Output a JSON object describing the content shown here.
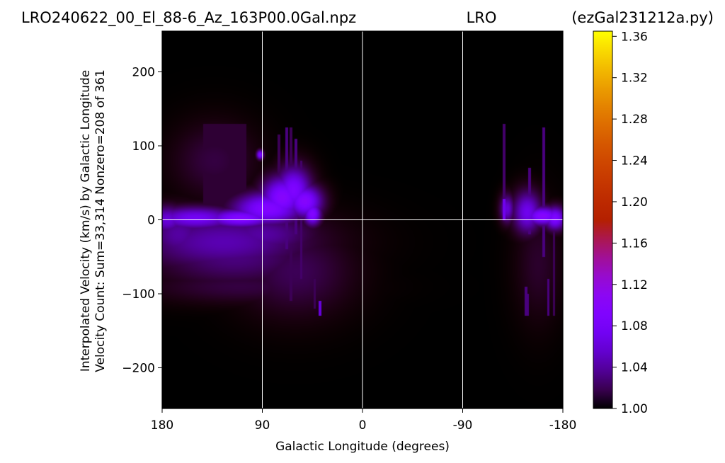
{
  "header": {
    "left": "LRO240622_00_El_88-6_Az_163P00.0Gal.npz",
    "center": "LRO",
    "right": "(ezGal231212a.py)"
  },
  "chart_data": {
    "type": "heatmap",
    "xlabel": "Galactic Longitude (degrees)",
    "ylabel_line1": "Interpolated Velocity (km/s) by Galactic Longitude",
    "ylabel_line2": "Velocity Count: Sum=33,314 Nonzero=208 of 361",
    "xlim": [
      180,
      -180
    ],
    "ylim": [
      -255,
      255
    ],
    "x_ticks": [
      {
        "value": 180,
        "label": "180"
      },
      {
        "value": 90,
        "label": "90"
      },
      {
        "value": 0,
        "label": "0"
      },
      {
        "value": -90,
        "label": "-90"
      },
      {
        "value": -180,
        "label": "-180"
      }
    ],
    "y_ticks": [
      {
        "value": 200,
        "label": "200"
      },
      {
        "value": 100,
        "label": "100"
      },
      {
        "value": 0,
        "label": "0"
      },
      {
        "value": -100,
        "label": "−100"
      },
      {
        "value": -200,
        "label": "−200"
      }
    ],
    "reference_lines": {
      "vertical_x": [
        90,
        0,
        -90
      ],
      "horizontal_y": [
        0
      ],
      "color": "#ffffff"
    },
    "colormap": "gnuplot",
    "background_value": 1.0,
    "colorbar": {
      "range": [
        1.0,
        1.365
      ],
      "ticks": [
        "1.00",
        "1.04",
        "1.08",
        "1.12",
        "1.16",
        "1.20",
        "1.24",
        "1.28",
        "1.32",
        "1.36"
      ],
      "tick_values": [
        1.0,
        1.04,
        1.08,
        1.12,
        1.16,
        1.2,
        1.24,
        1.28,
        1.32,
        1.36
      ]
    },
    "emission_blobs": [
      {
        "l": 125,
        "v": -30,
        "sl": 50,
        "sv": 25,
        "value": 1.045
      },
      {
        "l": 115,
        "v": -50,
        "sl": 45,
        "sv": 25,
        "value": 1.03
      },
      {
        "l": 90,
        "v": -20,
        "sl": 30,
        "sv": 18,
        "value": 1.04
      },
      {
        "l": 165,
        "v": -20,
        "sl": 18,
        "sv": 22,
        "value": 1.04
      },
      {
        "l": 175,
        "v": 0,
        "sl": 10,
        "sv": 12,
        "value": 1.06
      },
      {
        "l": 150,
        "v": 2,
        "sl": 25,
        "sv": 10,
        "value": 1.075
      },
      {
        "l": 110,
        "v": 2,
        "sl": 20,
        "sv": 8,
        "value": 1.095
      },
      {
        "l": 85,
        "v": 15,
        "sl": 20,
        "sv": 14,
        "value": 1.095
      },
      {
        "l": 72,
        "v": 30,
        "sl": 12,
        "sv": 18,
        "value": 1.1
      },
      {
        "l": 62,
        "v": 40,
        "sl": 10,
        "sv": 20,
        "value": 1.09
      },
      {
        "l": 52,
        "v": 25,
        "sl": 10,
        "sv": 14,
        "value": 1.1
      },
      {
        "l": 45,
        "v": 8,
        "sl": 5,
        "sv": 10,
        "value": 1.095
      },
      {
        "l": 110,
        "v": -90,
        "sl": 50,
        "sv": 14,
        "value": 1.015
      },
      {
        "l": 60,
        "v": -70,
        "sl": 30,
        "sv": 35,
        "value": 1.02
      },
      {
        "l": 133,
        "v": 80,
        "sl": 22,
        "sv": 30,
        "value": 1.015
      },
      {
        "l": 92,
        "v": 88,
        "sl": 2,
        "sv": 4,
        "value": 1.09
      },
      {
        "l": -162,
        "v": 5,
        "sl": 10,
        "sv": 8,
        "value": 1.1
      },
      {
        "l": -173,
        "v": 2,
        "sl": 6,
        "sv": 10,
        "value": 1.09
      },
      {
        "l": -148,
        "v": 10,
        "sl": 8,
        "sv": 18,
        "value": 1.07
      },
      {
        "l": -130,
        "v": 15,
        "sl": 4,
        "sv": 12,
        "value": 1.06
      },
      {
        "l": -158,
        "v": -60,
        "sl": 12,
        "sv": 45,
        "value": 1.01
      }
    ],
    "streaks": [
      {
        "l": 75,
        "v1": -20,
        "v2": 115,
        "value": 1.02
      },
      {
        "l": 68,
        "v1": -40,
        "v2": 125,
        "value": 1.03
      },
      {
        "l": 64,
        "v1": -110,
        "v2": 125,
        "value": 1.02
      },
      {
        "l": 60,
        "v1": -20,
        "v2": 110,
        "value": 1.03
      },
      {
        "l": 55,
        "v1": -80,
        "v2": 80,
        "value": 1.025
      },
      {
        "l": 38,
        "v1": -130,
        "v2": -110,
        "value": 1.06
      },
      {
        "l": 43,
        "v1": -120,
        "v2": -80,
        "value": 1.02
      },
      {
        "l": -127,
        "v1": 0,
        "v2": 130,
        "value": 1.025
      },
      {
        "l": -127,
        "v1": 0,
        "v2": 28,
        "value": 1.07
      },
      {
        "l": -150,
        "v1": -20,
        "v2": 70,
        "value": 1.03
      },
      {
        "l": -163,
        "v1": -50,
        "v2": 125,
        "value": 1.03
      },
      {
        "l": -172,
        "v1": -130,
        "v2": 20,
        "value": 1.02
      },
      {
        "l": -167,
        "v1": -130,
        "v2": -80,
        "value": 1.03
      },
      {
        "l": -148,
        "v1": -130,
        "v2": -100,
        "value": 1.03
      },
      {
        "l": -147,
        "v1": -130,
        "v2": -90,
        "value": 1.03
      }
    ],
    "patches": [
      {
        "l1": 143,
        "l2": 104,
        "v1": 0,
        "v2": 130,
        "value": 1.012
      }
    ]
  }
}
